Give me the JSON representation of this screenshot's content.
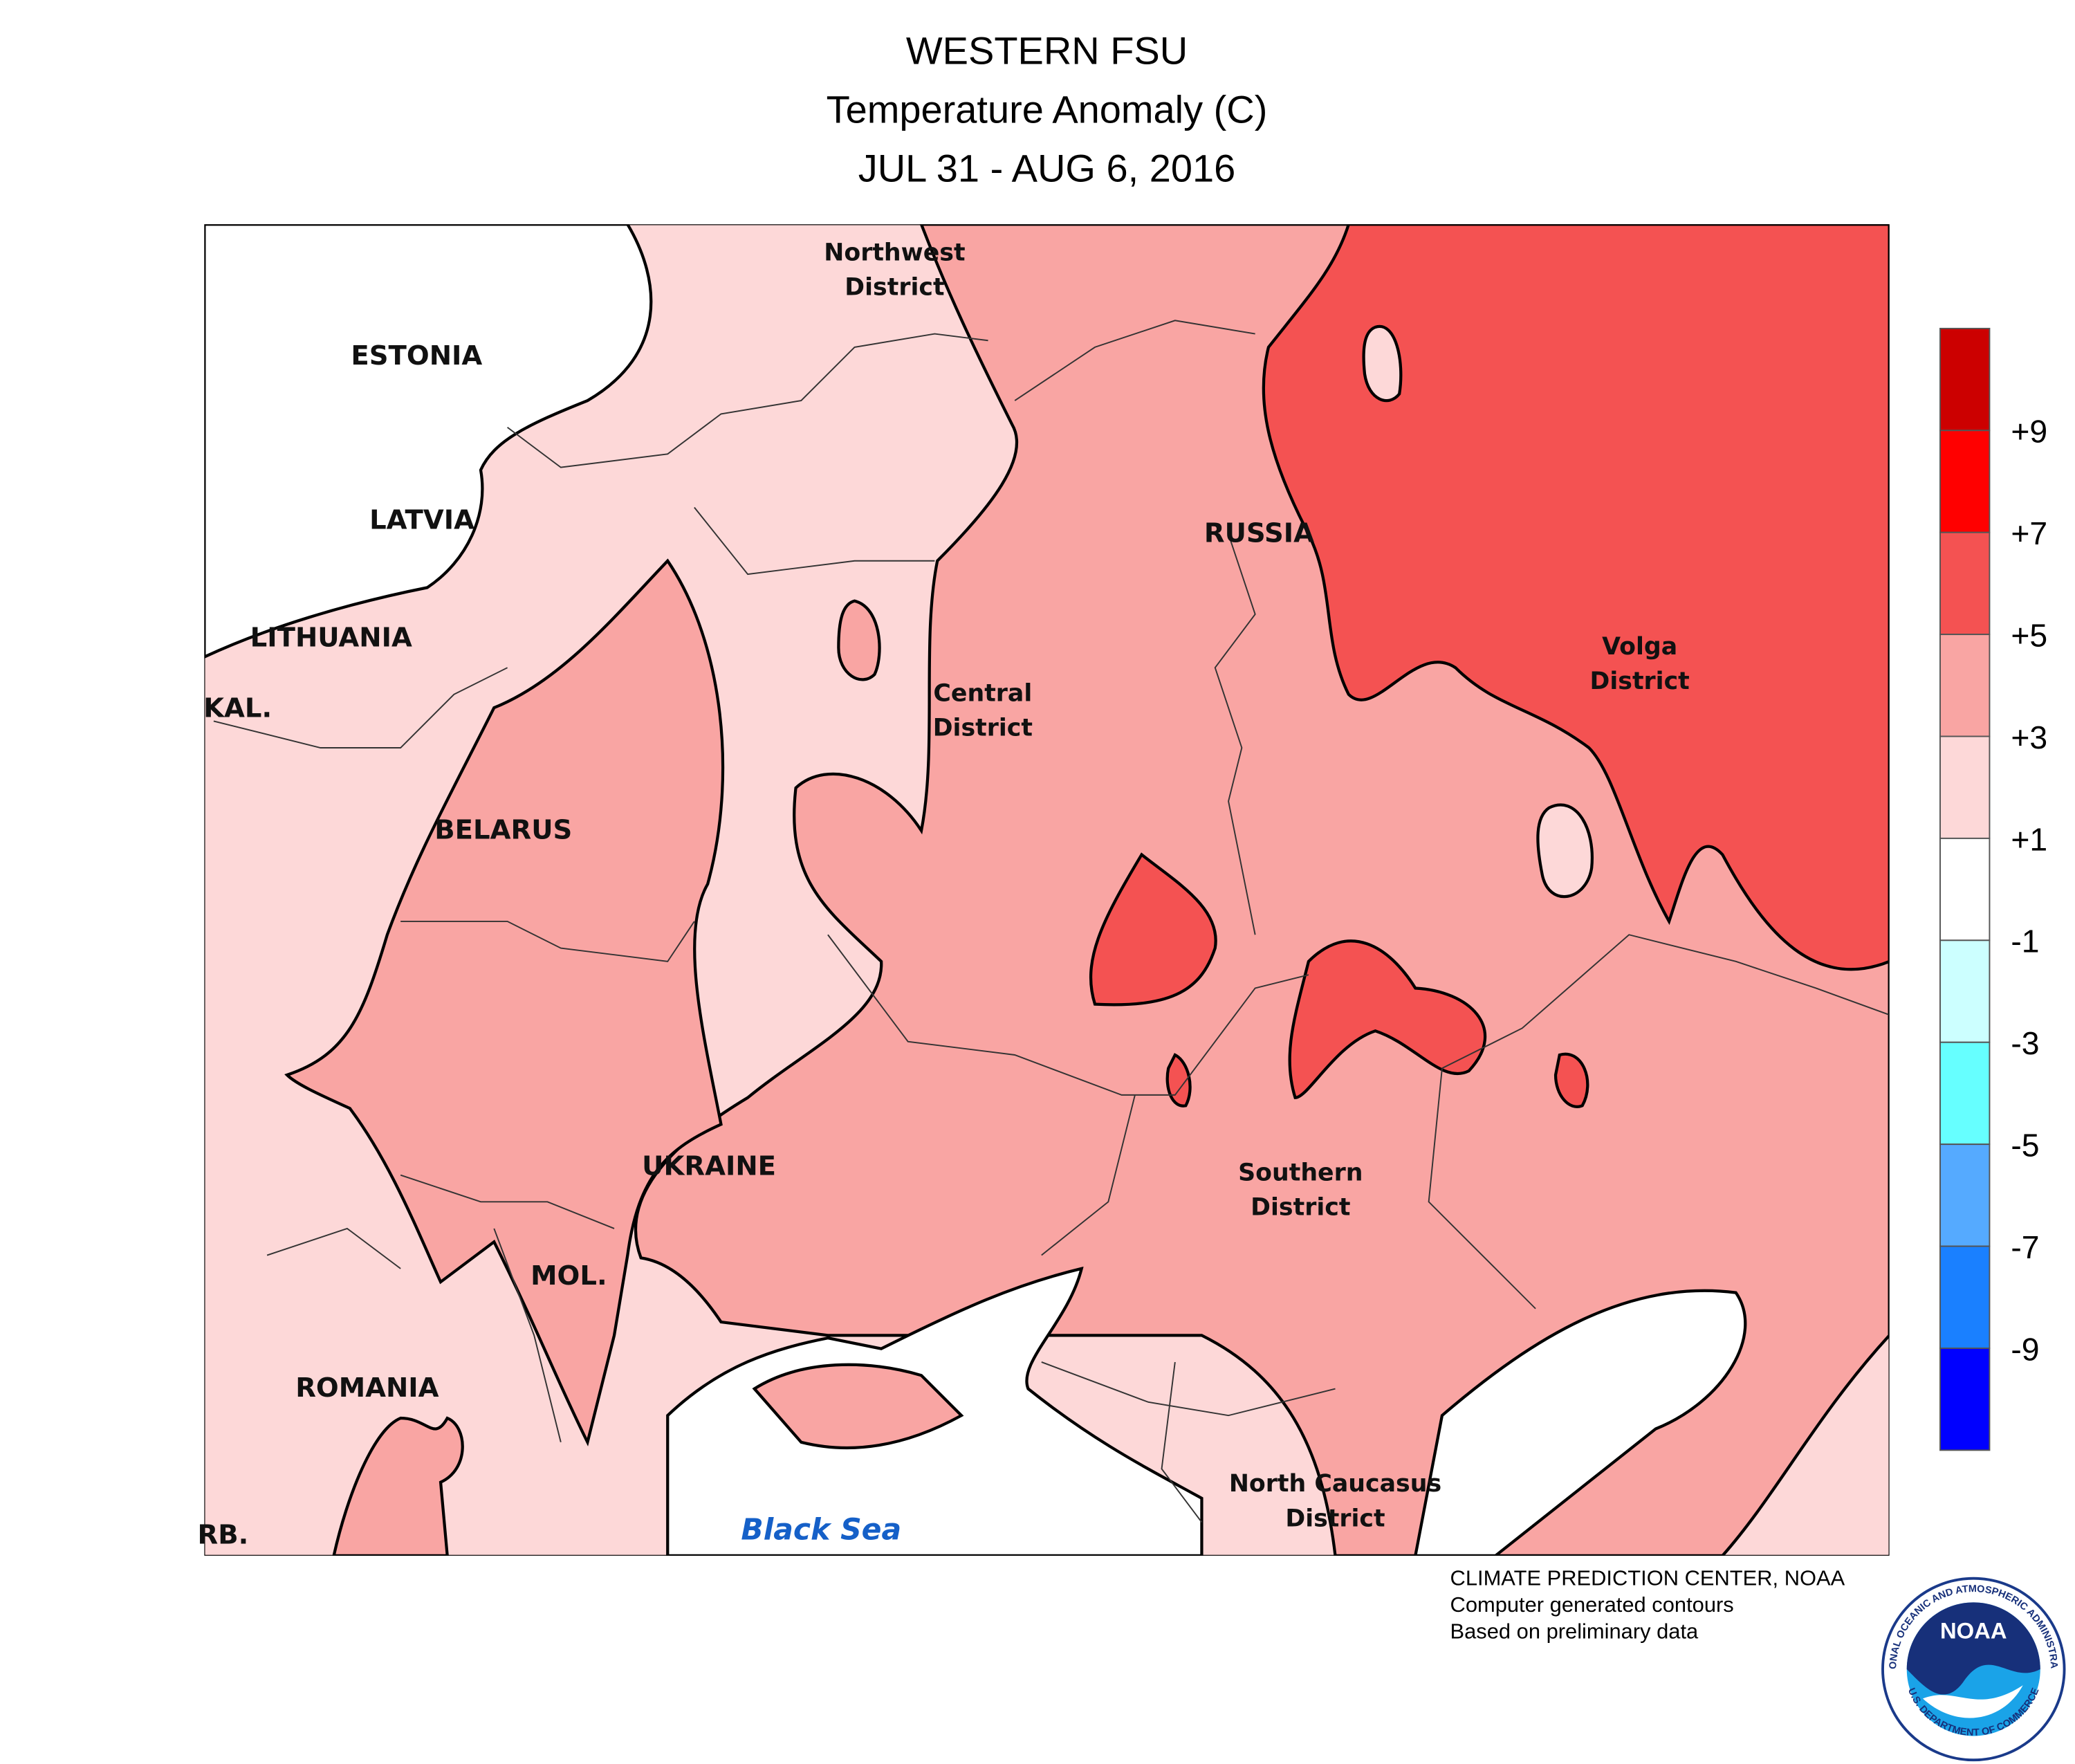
{
  "header": {
    "title": "WESTERN FSU",
    "subtitle": "Temperature Anomaly (C)",
    "period": "JUL 31 - AUG 6, 2016"
  },
  "map": {
    "labels": [
      "ESTONIA",
      "LATVIA",
      "LITHUANIA",
      "KAL.",
      "BELARUS",
      "UKRAINE",
      "MOL.",
      "ROMANIA",
      "RUSSIA",
      "RB."
    ],
    "districts": [
      [
        "Northwest",
        "District"
      ],
      [
        "Central",
        "District"
      ],
      [
        "Volga",
        "District"
      ],
      [
        "Southern",
        "District"
      ],
      [
        "North Caucasus",
        "District"
      ]
    ],
    "sea": "Black Sea"
  },
  "legend": {
    "colors": [
      "#cc0000",
      "#ff0000",
      "#f45252",
      "#f9a5a3",
      "#fdd8d8",
      "#ffffff",
      "#ccffff",
      "#66ffff",
      "#55aaff",
      "#1a80ff",
      "#0000ff"
    ],
    "labels": [
      "+9",
      "+7",
      "+5",
      "+3",
      "+1",
      "-1",
      "-3",
      "-5",
      "-7",
      "-9"
    ]
  },
  "footer": [
    "CLIMATE PREDICTION CENTER, NOAA",
    "Computer generated contours",
    "Based on preliminary data"
  ],
  "logo": {
    "name": "NOAA",
    "ring_top": "NATIONAL OCEANIC AND ATMOSPHERIC ADMINISTRATION",
    "ring_bottom": "U.S. DEPARTMENT OF COMMERCE"
  }
}
